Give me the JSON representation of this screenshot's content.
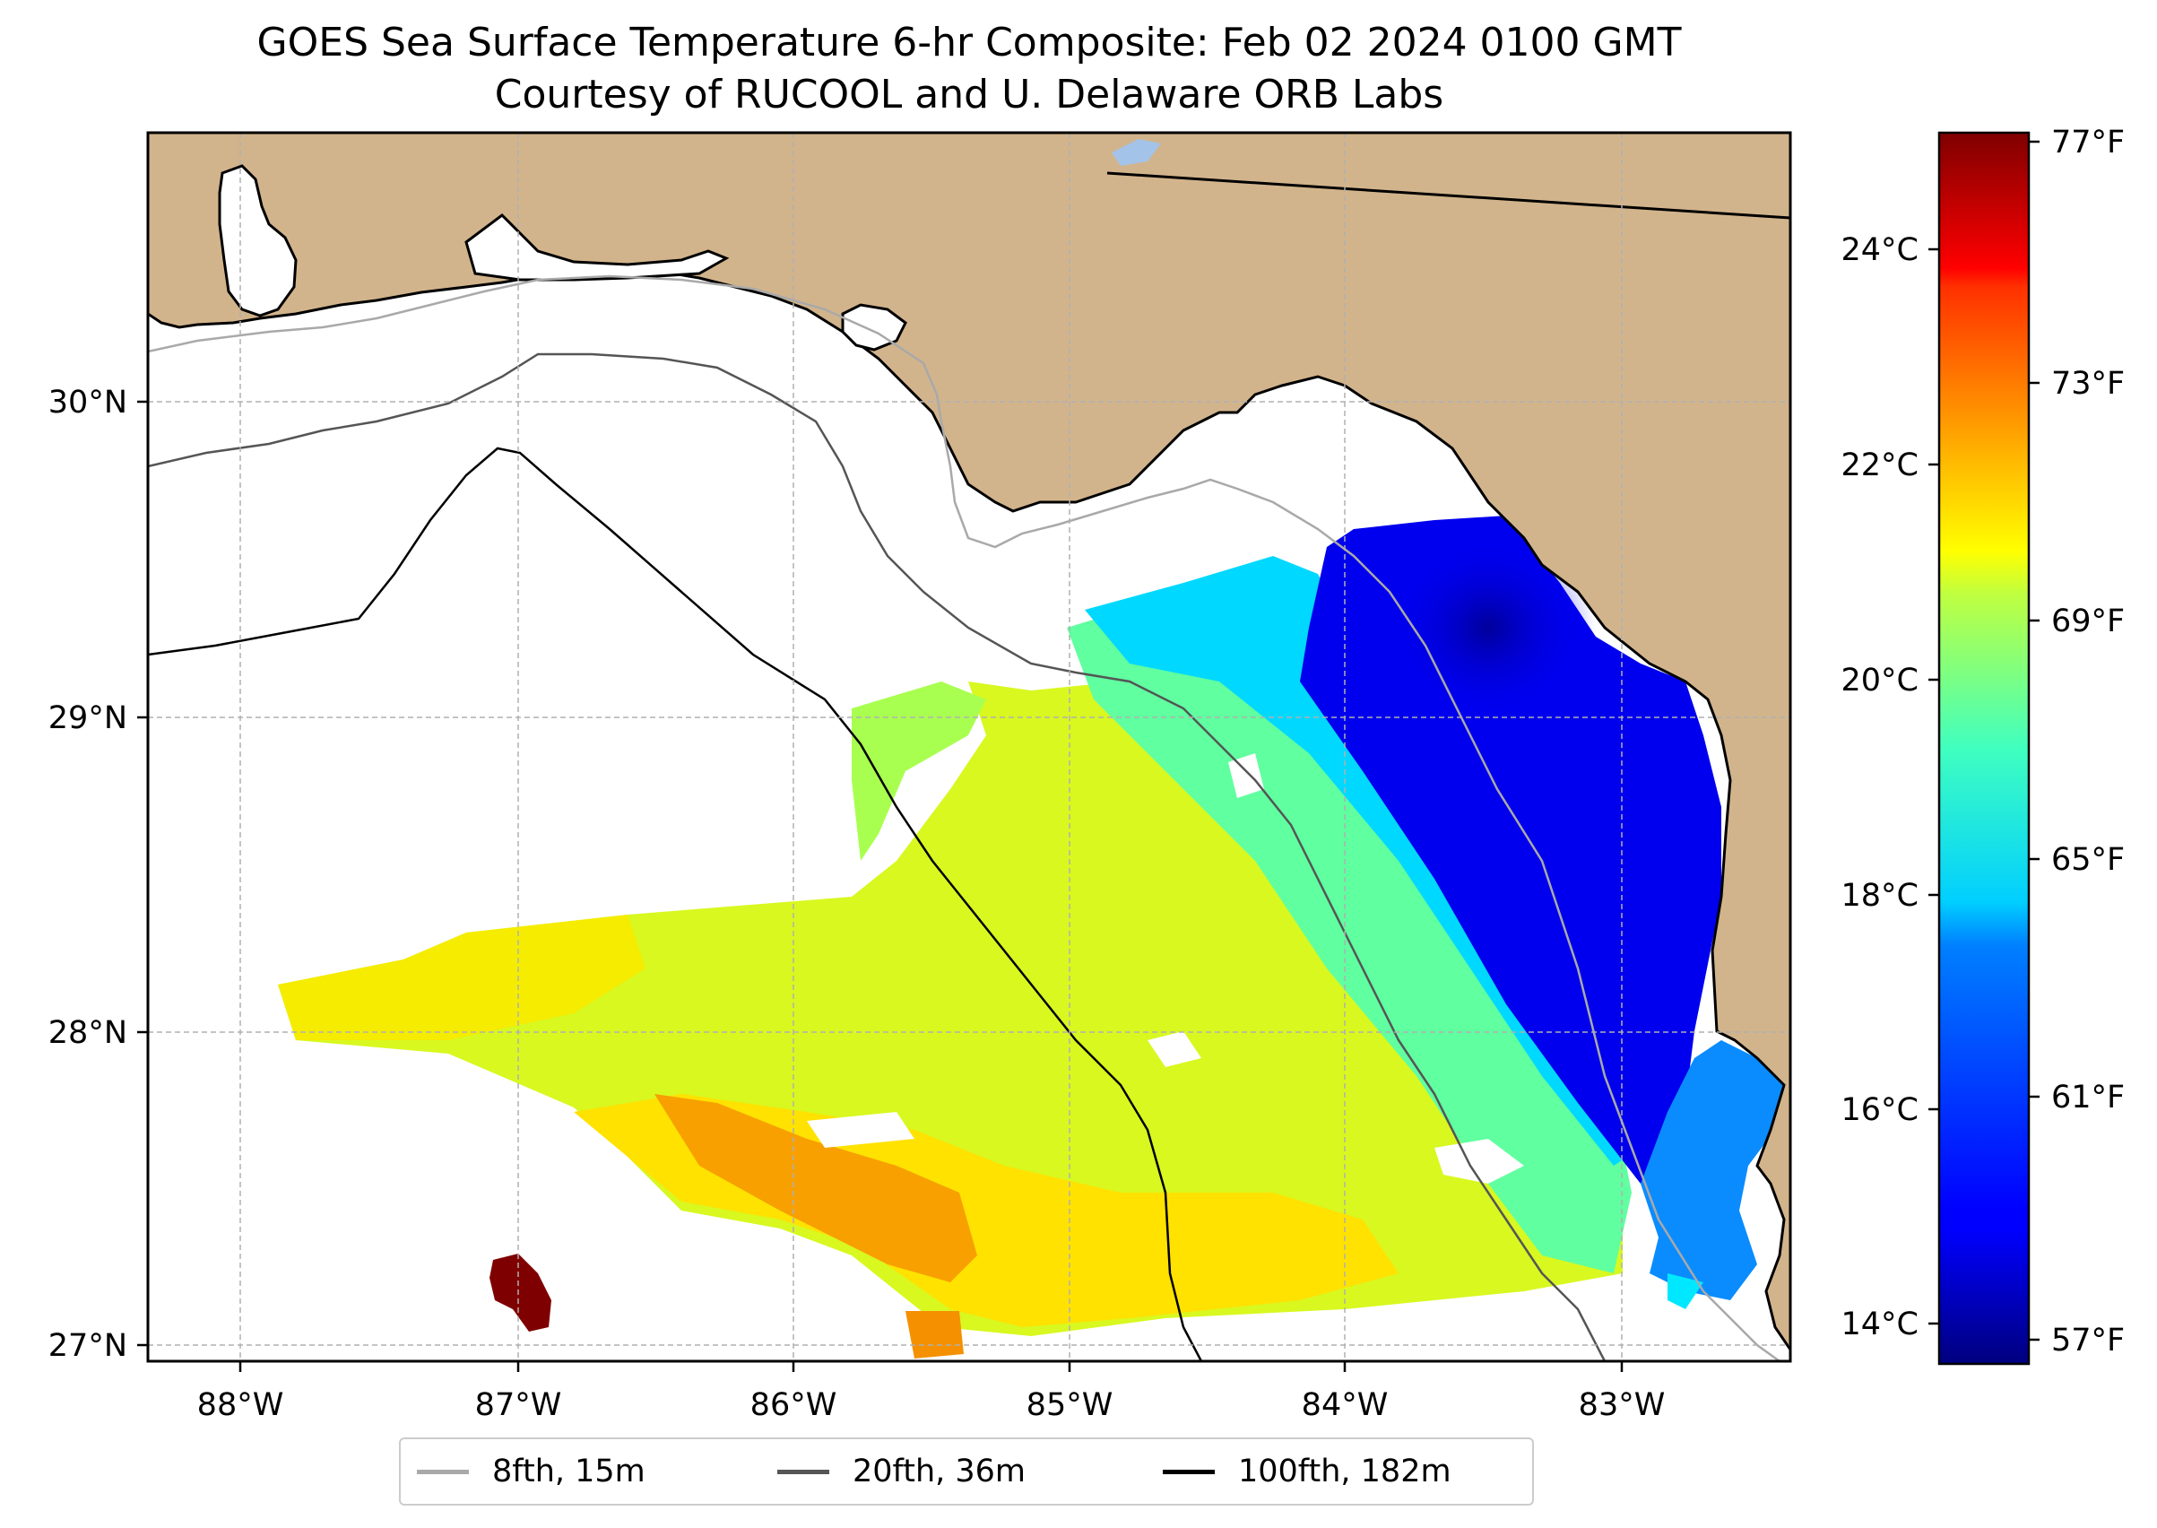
{
  "title": "GOES Sea Surface Temperature 6-hr Composite: Feb 02 2024 0100 GMT",
  "subtitle": "Courtesy of RUCOOL and U. Delaware ORB Labs",
  "map": {
    "lat_labels": [
      "30°N",
      "29°N",
      "28°N",
      "27°N"
    ],
    "lon_labels": [
      "88°W",
      "87°W",
      "86°W",
      "85°W",
      "84°W",
      "83°W"
    ],
    "land_color": "#d2b48c",
    "water_color": "#ffffff",
    "gridlines": true
  },
  "colorbar": {
    "celsius_labels": [
      "24°C",
      "22°C",
      "20°C",
      "18°C",
      "16°C",
      "14°C"
    ],
    "fahrenheit_labels": [
      "77°F",
      "73°F",
      "69°F",
      "65°F",
      "61°F",
      "57°F"
    ],
    "colormap": "jet"
  },
  "legend": {
    "items": [
      {
        "label": "8fth, 15m",
        "color": "#a9a9a9"
      },
      {
        "label": "20fth, 36m",
        "color": "#555555"
      },
      {
        "label": "100fth, 182m",
        "color": "#000000"
      }
    ]
  }
}
